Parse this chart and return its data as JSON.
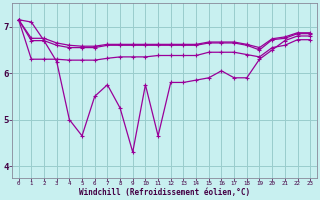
{
  "xlabel": "Windchill (Refroidissement éolien,°C)",
  "background_color": "#c8f0f0",
  "line_color": "#990099",
  "grid_color": "#99cccc",
  "xlim": [
    -0.5,
    23.5
  ],
  "ylim": [
    3.75,
    7.5
  ],
  "yticks": [
    4,
    5,
    6,
    7
  ],
  "xticks": [
    0,
    1,
    2,
    3,
    4,
    5,
    6,
    7,
    8,
    9,
    10,
    11,
    12,
    13,
    14,
    15,
    16,
    17,
    18,
    19,
    20,
    21,
    22,
    23
  ],
  "line1_volatile": [
    7.15,
    7.1,
    6.7,
    6.25,
    5.0,
    4.65,
    5.5,
    5.75,
    5.25,
    4.3,
    5.75,
    4.65,
    5.8,
    5.8,
    5.85,
    5.9,
    6.05,
    5.9,
    5.9,
    6.3,
    6.5,
    6.7,
    6.8,
    6.8
  ],
  "line2_upper": [
    7.15,
    6.7,
    6.7,
    6.6,
    6.55,
    6.55,
    6.55,
    6.6,
    6.6,
    6.6,
    6.6,
    6.6,
    6.6,
    6.6,
    6.6,
    6.65,
    6.65,
    6.65,
    6.6,
    6.5,
    6.72,
    6.75,
    6.85,
    6.85
  ],
  "line3_mid": [
    7.15,
    6.75,
    6.75,
    6.65,
    6.6,
    6.58,
    6.58,
    6.62,
    6.62,
    6.62,
    6.62,
    6.62,
    6.62,
    6.62,
    6.62,
    6.67,
    6.67,
    6.67,
    6.62,
    6.55,
    6.74,
    6.78,
    6.87,
    6.87
  ],
  "line4_lower": [
    7.15,
    6.3,
    6.3,
    6.3,
    6.28,
    6.28,
    6.28,
    6.32,
    6.35,
    6.35,
    6.35,
    6.38,
    6.38,
    6.38,
    6.38,
    6.45,
    6.45,
    6.45,
    6.4,
    6.35,
    6.55,
    6.6,
    6.72,
    6.72
  ]
}
